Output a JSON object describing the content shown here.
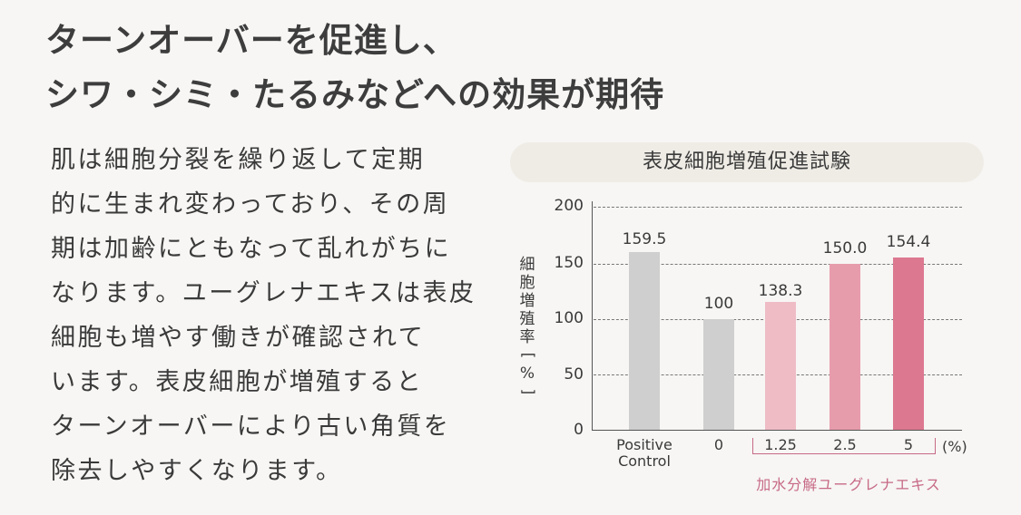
{
  "headline": {
    "line1": "ターンオーバーを促進し、",
    "line2": "シワ・シミ・たるみなどへの効果が期待"
  },
  "body": {
    "lines": [
      "肌は細胞分裂を繰り返して定期",
      "的に生まれ変わっており、その周",
      "期は加齢にともなって乱れがちに",
      "なります。ユーグレナエキスは表皮",
      "細胞も増やす働きが確認されて",
      "います。表皮細胞が増殖すると",
      "ターンオーバーにより古い角質を",
      "除去しやすくなります。"
    ]
  },
  "chart_data": {
    "type": "bar",
    "title": "表皮細胞増殖促進試験",
    "xlabel": "加水分解ユーグレナエキス",
    "x_unit": "(%)",
    "ylabel": "細胞増殖率[%]",
    "ylim": [
      0,
      200
    ],
    "yticks": [
      "200",
      "150",
      "100",
      "50",
      "0"
    ],
    "grid": true,
    "categories": [
      "Positive Control",
      "0",
      "1.25",
      "2.5",
      "5"
    ],
    "values": [
      159.5,
      100,
      138.3,
      150.0,
      154.4
    ],
    "value_labels": [
      "159.5",
      "100",
      "138.3",
      "150.0",
      "154.4"
    ],
    "bracket_group": [
      "1.25",
      "2.5",
      "5"
    ],
    "colors": [
      "#cfcfcf",
      "#cfcfcf",
      "#efbcc6",
      "#e79cac",
      "#dc7890"
    ],
    "bracket_color": "#c76a86"
  }
}
